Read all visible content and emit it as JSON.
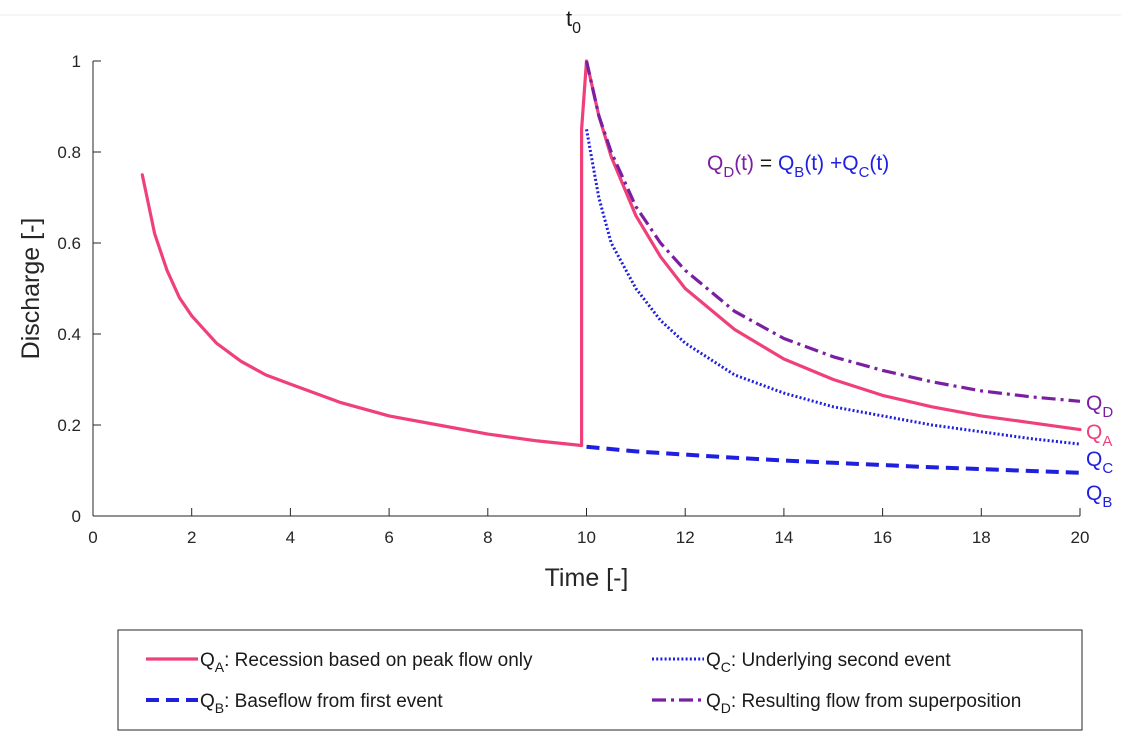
{
  "chart_data": {
    "type": "line",
    "xlabel": "Time [-]",
    "ylabel": "Discharge [-]",
    "xlim": [
      0,
      20
    ],
    "ylim": [
      0,
      1
    ],
    "xticks": [
      0,
      2,
      4,
      6,
      8,
      10,
      12,
      14,
      16,
      18,
      20
    ],
    "yticks": [
      0,
      0.2,
      0.4,
      0.6,
      0.8,
      1
    ],
    "ytick_labels": [
      "0",
      "0.2",
      "0.4",
      "0.6",
      "0.8",
      "1"
    ],
    "grid": false,
    "top_annotation": "t",
    "top_annotation_sub": "0",
    "equation": {
      "parts": [
        {
          "text": "Q",
          "color": "#7b1fa2"
        },
        {
          "text": "D",
          "sub": true,
          "color": "#7b1fa2"
        },
        {
          "text": "(t)",
          "color": "#7b1fa2"
        },
        {
          "text": " = ",
          "color": "#1a1a1a"
        },
        {
          "text": "Q",
          "color": "#1f1fe0"
        },
        {
          "text": "B",
          "sub": true,
          "color": "#1f1fe0"
        },
        {
          "text": "(t) +Q",
          "color": "#1f1fe0"
        },
        {
          "text": "C",
          "sub": true,
          "color": "#1f1fe0"
        },
        {
          "text": "(t)",
          "color": "#1f1fe0"
        }
      ]
    },
    "series": [
      {
        "name": "Q",
        "sub": "A",
        "legend_desc": ": Recession based on peak flow only",
        "end_label": "Q",
        "end_sub": "A",
        "color": "#f0407a",
        "style": "solid",
        "x": [
          1.0,
          1.25,
          1.5,
          1.75,
          2.0,
          2.5,
          3.0,
          3.5,
          4.0,
          5.0,
          6.0,
          7.0,
          8.0,
          9.0,
          9.9,
          9.9,
          10.0,
          10.25,
          10.5,
          11.0,
          11.5,
          12.0,
          13.0,
          14.0,
          15.0,
          16.0,
          17.0,
          18.0,
          19.0,
          20.0
        ],
        "y": [
          0.75,
          0.62,
          0.54,
          0.48,
          0.44,
          0.38,
          0.34,
          0.31,
          0.29,
          0.25,
          0.22,
          0.2,
          0.18,
          0.165,
          0.155,
          0.85,
          1.0,
          0.88,
          0.79,
          0.66,
          0.57,
          0.5,
          0.41,
          0.345,
          0.3,
          0.265,
          0.24,
          0.22,
          0.205,
          0.19
        ]
      },
      {
        "name": "Q",
        "sub": "B",
        "legend_desc": ": Baseflow from first event",
        "end_label": "Q",
        "end_sub": "B",
        "color": "#1f1fe0",
        "style": "dashed",
        "x": [
          10.0,
          11.0,
          12.0,
          13.0,
          14.0,
          15.0,
          16.0,
          17.0,
          18.0,
          19.0,
          20.0
        ],
        "y": [
          0.152,
          0.142,
          0.135,
          0.128,
          0.122,
          0.117,
          0.112,
          0.107,
          0.103,
          0.099,
          0.095
        ]
      },
      {
        "name": "Q",
        "sub": "C",
        "legend_desc": ": Underlying second event",
        "end_label": "Q",
        "end_sub": "C",
        "color": "#1f1fe0",
        "style": "dotted",
        "x": [
          10.0,
          10.25,
          10.5,
          11.0,
          11.5,
          12.0,
          13.0,
          14.0,
          15.0,
          16.0,
          17.0,
          18.0,
          19.0,
          20.0
        ],
        "y": [
          0.85,
          0.7,
          0.6,
          0.5,
          0.43,
          0.38,
          0.31,
          0.27,
          0.24,
          0.22,
          0.2,
          0.185,
          0.17,
          0.158
        ]
      },
      {
        "name": "Q",
        "sub": "D",
        "legend_desc": ": Resulting flow from superposition",
        "end_label": "Q",
        "end_sub": "D",
        "color": "#7b1fa2",
        "style": "dashdot",
        "x": [
          10.0,
          10.25,
          10.5,
          11.0,
          11.5,
          12.0,
          13.0,
          14.0,
          15.0,
          16.0,
          17.0,
          18.0,
          19.0,
          20.0
        ],
        "y": [
          1.0,
          0.88,
          0.8,
          0.68,
          0.6,
          0.54,
          0.45,
          0.39,
          0.35,
          0.32,
          0.295,
          0.275,
          0.262,
          0.252
        ]
      }
    ]
  }
}
